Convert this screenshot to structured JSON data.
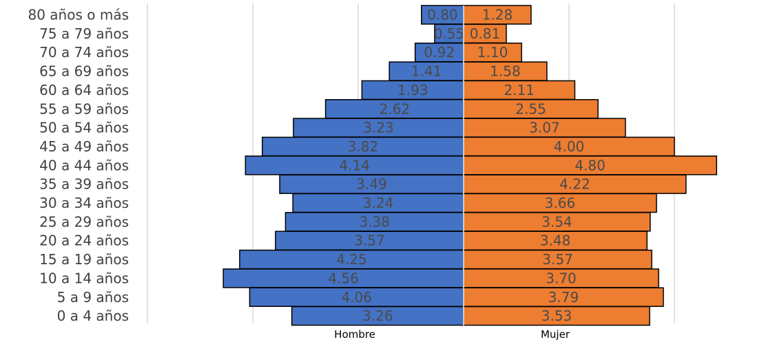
{
  "chart_data": {
    "type": "bar",
    "orientation": "horizontal",
    "subtype": "population-pyramid",
    "categories": [
      "0 a 4 años",
      "5 a 9 años",
      "10 a 14 años",
      "15 a 19 años",
      "20 a 24 años",
      "25 a 29 años",
      "30 a 34 años",
      "35 a 39 años",
      "40 a 44 años",
      "45 a 49 años",
      "50 a 54 años",
      "55 a 59 años",
      "60 a 64 años",
      "65 a 69 años",
      "70 a 74 años",
      "75 a 79 años",
      "80 años o más"
    ],
    "series": [
      {
        "name": "Hombre",
        "values": [
          3.26,
          4.06,
          4.56,
          4.25,
          3.57,
          3.38,
          3.24,
          3.49,
          4.14,
          3.82,
          3.23,
          2.62,
          1.93,
          1.41,
          0.92,
          0.55,
          0.8
        ],
        "labels": [
          "3.26",
          "4.06",
          "4.56",
          "4.25",
          "3.57",
          "3.38",
          "3.24",
          "3.49",
          "4.14",
          "3.82",
          "3.23",
          "2.62",
          "1.93",
          "1.41",
          "0.92",
          "0.55",
          "0.80"
        ],
        "color": "#4472C4"
      },
      {
        "name": "Mujer",
        "values": [
          3.53,
          3.79,
          3.7,
          3.57,
          3.48,
          3.54,
          3.66,
          4.22,
          4.8,
          4.0,
          3.07,
          2.55,
          2.11,
          1.58,
          1.1,
          0.81,
          1.28
        ],
        "labels": [
          "3.53",
          "3.79",
          "3.70",
          "3.57",
          "3.48",
          "3.54",
          "3.66",
          "4.22",
          "4.80",
          "4.00",
          "3.07",
          "2.55",
          "2.11",
          "1.58",
          "1.10",
          "0.81",
          "1.28"
        ],
        "color": "#ED7D31"
      }
    ],
    "title": "",
    "xlabel": "",
    "ylabel": "",
    "xlim": [
      -6,
      6
    ],
    "grid": true,
    "legend": "bottom"
  }
}
